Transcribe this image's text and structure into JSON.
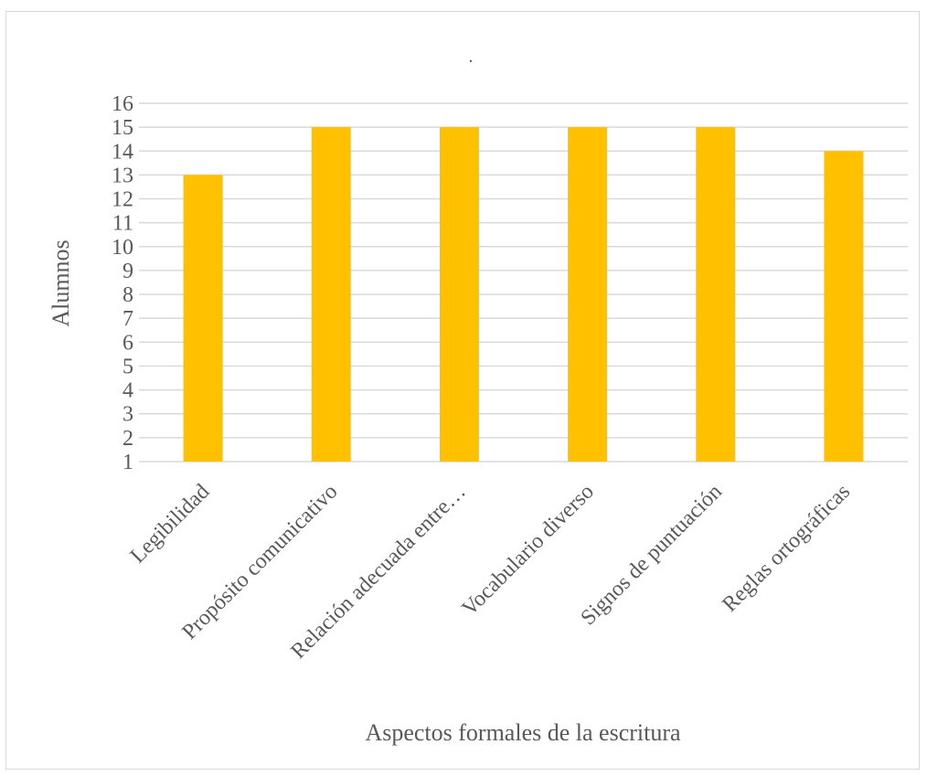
{
  "chart_data": {
    "type": "bar",
    "title": ".",
    "xlabel": "Aspectos formales de la escritura",
    "ylabel": "Alumnos",
    "categories": [
      "Legibilidad",
      "Propósito comunicativo",
      "Relación adecuada entre…",
      "Vocabulario diverso",
      "Signos de puntuación",
      "Reglas ortográficas"
    ],
    "values": [
      13,
      15,
      15,
      15,
      15,
      14
    ],
    "ylim": [
      1,
      16
    ],
    "yticks": [
      "1",
      "2",
      "3",
      "4",
      "5",
      "6",
      "7",
      "8",
      "9",
      "10",
      "11",
      "12",
      "13",
      "14",
      "15",
      "16"
    ],
    "grid": true,
    "legend": "none",
    "bar_color": "#FFC000"
  }
}
